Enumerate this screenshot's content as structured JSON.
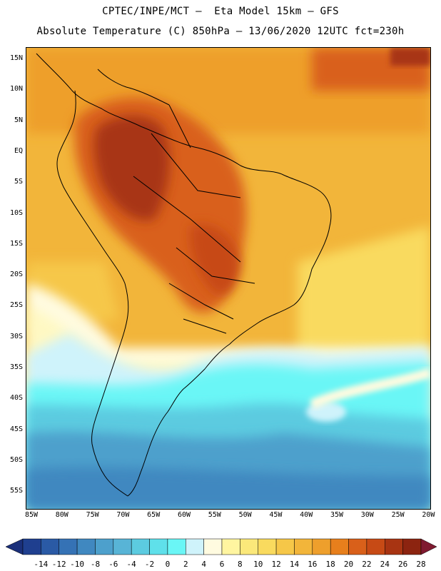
{
  "title_line1": "CPTEC/INPE/MCT –  Eta Model 15km – GFS",
  "title_line2": "Absolute Temperature (C) 850hPa – 13/06/2020 12UTC fct=230h",
  "lat_labels": [
    "15N",
    "10N",
    "5N",
    "EQ",
    "5S",
    "10S",
    "15S",
    "20S",
    "25S",
    "30S",
    "35S",
    "40S",
    "45S",
    "50S",
    "55S"
  ],
  "lon_labels": [
    "85W",
    "80W",
    "75W",
    "70W",
    "65W",
    "60W",
    "55W",
    "50W",
    "45W",
    "40W",
    "35W",
    "30W",
    "25W",
    "20W"
  ],
  "colorbar": {
    "labels": [
      "-14",
      "-12",
      "-10",
      "-8",
      "-6",
      "-4",
      "-2",
      "0",
      "2",
      "4",
      "6",
      "8",
      "10",
      "12",
      "14",
      "16",
      "18",
      "20",
      "22",
      "24",
      "26",
      "28"
    ],
    "colors": [
      "#1f3f8f",
      "#2a5aa5",
      "#3572b5",
      "#4088c0",
      "#4da0cc",
      "#58b4d6",
      "#5ccbe0",
      "#5fe0ea",
      "#6af6f6",
      "#cff3fb",
      "#fffbe0",
      "#fff5a0",
      "#fbe87a",
      "#f9da5e",
      "#f6c748",
      "#f2b53a",
      "#ee9f2c",
      "#e77f1c",
      "#d9601a",
      "#c74a15",
      "#a83412",
      "#8c2410"
    ],
    "low_color": "#1a2f7a",
    "high_color": "#801a30"
  }
}
